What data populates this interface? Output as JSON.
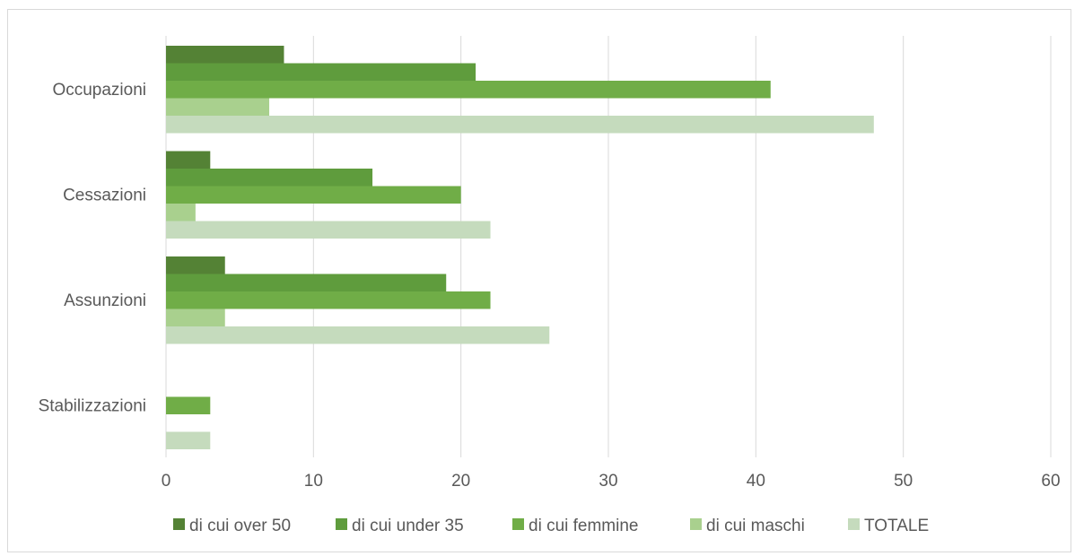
{
  "chart_data": {
    "type": "bar",
    "orientation": "horizontal",
    "title": "",
    "xlabel": "",
    "ylabel": "",
    "categories": [
      "Occupazioni",
      "Cessazioni",
      "Assunzioni",
      "Stabilizzazioni"
    ],
    "xlim": [
      0,
      60
    ],
    "ticks": [
      0,
      10,
      20,
      30,
      40,
      50,
      60
    ],
    "grid": true,
    "legend_position": "bottom",
    "series": [
      {
        "name": "di cui over 50",
        "color": "#548235",
        "values": [
          8,
          3,
          4,
          0
        ]
      },
      {
        "name": "di cui under 35",
        "color": "#5f9c3d",
        "values": [
          21,
          14,
          19,
          0
        ]
      },
      {
        "name": "di cui femmine",
        "color": "#70ad47",
        "values": [
          41,
          20,
          22,
          3
        ]
      },
      {
        "name": "di cui maschi",
        "color": "#a9d08e",
        "values": [
          7,
          2,
          4,
          0
        ]
      },
      {
        "name": "TOTALE",
        "color": "#c5dbbd",
        "values": [
          48,
          22,
          26,
          3
        ]
      }
    ]
  }
}
